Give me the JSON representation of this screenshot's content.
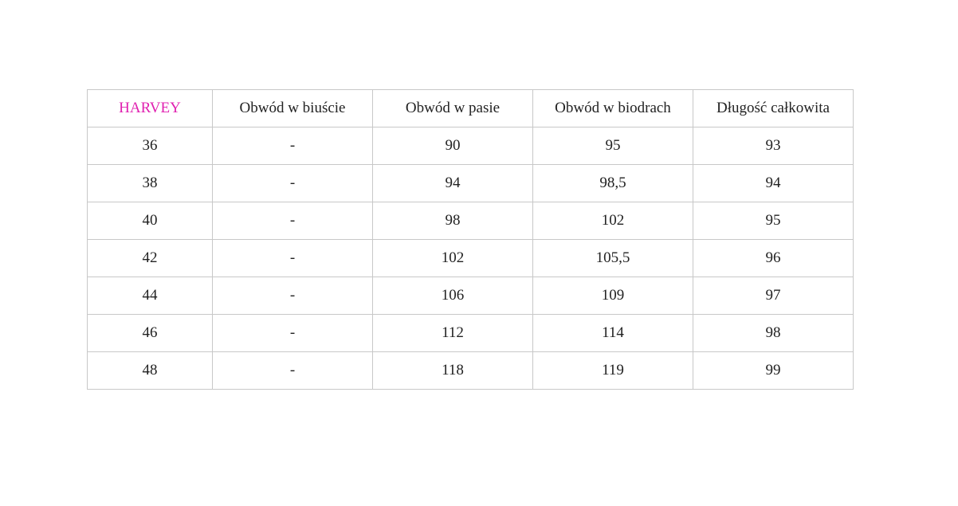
{
  "table": {
    "header": [
      "HARVEY",
      "Obwód w biuście",
      "Obwód w pasie",
      "Obwód w biodrach",
      "Długość całkowita"
    ],
    "rows": [
      [
        "36",
        "-",
        "90",
        "95",
        "93"
      ],
      [
        "38",
        "-",
        "94",
        "98,5",
        "94"
      ],
      [
        "40",
        "-",
        "98",
        "102",
        "95"
      ],
      [
        "42",
        "-",
        "102",
        "105,5",
        "96"
      ],
      [
        "44",
        "-",
        "106",
        "109",
        "97"
      ],
      [
        "46",
        "-",
        "112",
        "114",
        "98"
      ],
      [
        "48",
        "-",
        "118",
        "119",
        "99"
      ]
    ]
  }
}
